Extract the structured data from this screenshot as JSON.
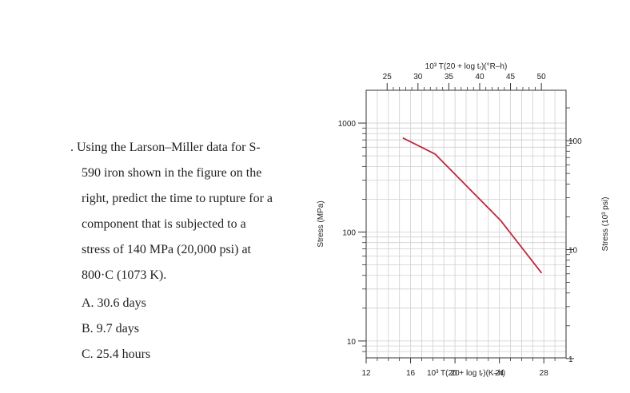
{
  "question": {
    "lines": [
      ". Using the Larson–Miller data for S-",
      "590 iron shown in the figure on the",
      "right, predict the time to rupture for a",
      "component that is subjected to a",
      "stress of 140 MPa (20,000 psi) at",
      "800·C (1073 K).",
      "A. 30.6 days",
      "B. 9.7 days",
      "C. 25.4 hours"
    ]
  },
  "chart_data": {
    "type": "line",
    "title": "",
    "xlabel": "10³ T(20 + log tᵣ)(K–h)",
    "xlim": [
      12,
      30
    ],
    "x_ticks": [
      "12",
      "16",
      "20",
      "24",
      "28"
    ],
    "x_top_label": "10³ T(20 + log tᵣ)(°R–h)",
    "x_top_ticks": [
      "25",
      "30",
      "35",
      "40",
      "45",
      "50"
    ],
    "ylabel": "Stress (MPa)",
    "ylim": [
      7,
      2000
    ],
    "y_scale": "log",
    "y_ticks": [
      "10",
      "100",
      "1000"
    ],
    "y_right_label": "Stress (10³ psi)",
    "y_right_ticks": [
      "1",
      "10",
      "100"
    ],
    "grid": true,
    "series": [
      {
        "color": "#c0283b",
        "x": [
          15.3,
          18.2,
          24.1,
          27.8
        ],
        "y": [
          730,
          520,
          128,
          42
        ]
      }
    ]
  }
}
